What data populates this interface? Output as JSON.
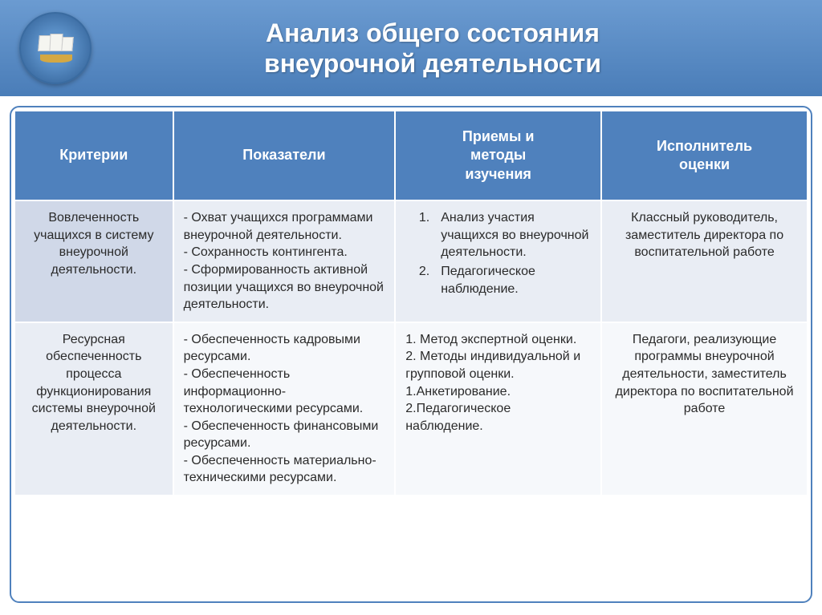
{
  "title_line1": "Анализ общего состояния",
  "title_line2": "внеурочной деятельности",
  "colors": {
    "header_band": "#4f81bd",
    "th_bg": "#4f81bd",
    "th_text": "#ffffff",
    "row_odd_firstcol": "#d0d8e8",
    "row_odd": "#e9edf4",
    "row_even_firstcol": "#e9edf4",
    "row_even": "#f6f8fb",
    "border": "#ffffff",
    "frame_border": "#4f81bd"
  },
  "typography": {
    "title_fontsize": 32,
    "th_fontsize": 18,
    "td_fontsize": 16,
    "font_family": "Arial"
  },
  "table": {
    "columns": [
      {
        "label": "Критерии",
        "width_pct": 20
      },
      {
        "label": "Показатели",
        "width_pct": 28
      },
      {
        "label_line1": "Приемы и",
        "label_line2": "методы",
        "label_line3": "изучения",
        "width_pct": 26
      },
      {
        "label_line1": "Исполнитель",
        "label_line2": "оценки",
        "width_pct": 26
      }
    ],
    "rows": [
      {
        "criteria": "Вовлеченность учащихся в систему внеурочной деятельности.",
        "indicators": "- Охват учащихся программами внеурочной деятельности.\n- Сохранность контингента.\n- Сформированность активной позиции учащихся во внеурочной деятельности.",
        "methods_list": [
          {
            "num": "1.",
            "text": "Анализ участия учащихся во внеурочной деятельности."
          },
          {
            "num": "2.",
            "text": "Педагогическое наблюдение."
          }
        ],
        "executor": "Классный руководитель, заместитель директора по воспитательной работе"
      },
      {
        "criteria": "Ресурсная обеспеченность процесса функционирования системы внеурочной деятельности.",
        "indicators": "- Обеспеченность кадровыми ресурсами.\n- Обеспеченность информационно-технологическими ресурсами.\n- Обеспеченность финансовыми ресурсами.\n- Обеспеченность материально-техническими ресурсами.",
        "methods_plain": "1. Метод экспертной оценки.\n2. Методы индивидуальной и групповой оценки.\n1.Анкетирование.\n2.Педагогическое наблюдение.",
        "executor": "Педагоги, реализующие программы внеурочной деятельности, заместитель директора по воспитательной работе"
      }
    ]
  }
}
